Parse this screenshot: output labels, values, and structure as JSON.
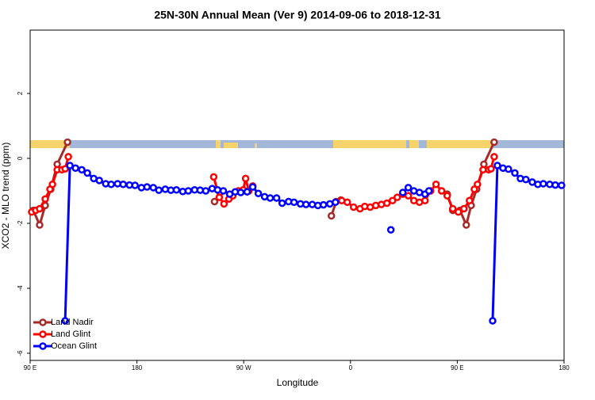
{
  "chart_data": {
    "type": "line",
    "title": "25N-30N Annual Mean (Ver 9)   2014-09-06 to 2018-12-31",
    "xlabel": "Longitude",
    "ylabel": "XCO2 - MLO trend (ppm)",
    "xlim": [
      90,
      540
    ],
    "ylim": [
      -6.22,
      3.95
    ],
    "xticks": [
      {
        "value": 90,
        "label": "90 E"
      },
      {
        "value": 180,
        "label": "180"
      },
      {
        "value": 270,
        "label": "90 W"
      },
      {
        "value": 360,
        "label": "0"
      },
      {
        "value": 450,
        "label": "90 E"
      },
      {
        "value": 540,
        "label": "180"
      }
    ],
    "yticks": [
      2,
      0,
      -2,
      -4,
      -6
    ],
    "legend": "bottom-left",
    "series": [
      {
        "name": "Land Nadir",
        "color": "#a52a2a",
        "x": [
          92.7,
          98,
          102.7,
          107.4,
          112.8,
          121.5,
          null,
          245.4,
          250,
          null,
          343.9,
          347.9,
          351.9,
          null,
          441.5,
          446.2,
          452.3,
          457.6,
          461.7,
          466.3,
          472.4,
          481.1
        ],
        "values": [
          -1.6,
          -2.05,
          -1.45,
          -0.95,
          -0.18,
          0.5,
          null,
          -1.33,
          -1.05,
          null,
          -1.77,
          -1.33,
          -1.28,
          null,
          -1.1,
          -1.6,
          -1.6,
          -2.05,
          -1.45,
          -0.95,
          -0.18,
          0.5
        ]
      },
      {
        "name": "Land Glint",
        "color": "#ff0000",
        "x": [
          91.3,
          94.7,
          98,
          102.7,
          106.7,
          108.8,
          112.8,
          116.8,
          119.5,
          122.2,
          null,
          244.7,
          249.4,
          253.4,
          257.5,
          260.8,
          265.5,
          269.6,
          271.6,
          274.3,
          277.6,
          null,
          352.6,
          357.3,
          362.6,
          368,
          372,
          376.6,
          381.3,
          386,
          390.7,
          395.4,
          399.4,
          404.1,
          408.7,
          413.4,
          418.1,
          422.8,
          427.5,
          432.1,
          436.8,
          441.5,
          446.2,
          450.9,
          455.6,
          460.3,
          464.4,
          467,
          471.7,
          476.4,
          478.4,
          481.1
        ],
        "values": [
          -1.65,
          -1.6,
          -1.55,
          -1.25,
          -0.95,
          -0.8,
          -0.35,
          -0.35,
          -0.32,
          0.05,
          null,
          -0.57,
          -1.2,
          -1.4,
          -1.25,
          -1.15,
          -1.0,
          -0.97,
          -0.62,
          -1.0,
          -0.85,
          null,
          -1.3,
          -1.35,
          -1.5,
          -1.55,
          -1.48,
          -1.5,
          -1.45,
          -1.42,
          -1.38,
          -1.3,
          -1.2,
          -1.1,
          -1.15,
          -1.3,
          -1.35,
          -1.3,
          -1.0,
          -0.8,
          -1.0,
          -1.15,
          -1.55,
          -1.65,
          -1.55,
          -1.3,
          -0.95,
          -0.8,
          -0.35,
          -0.35,
          -0.32,
          0.05
        ]
      },
      {
        "name": "Ocean Glint",
        "color": "#0000ff",
        "x": [
          119.5,
          123.5,
          128.2,
          133.5,
          138.2,
          143.6,
          148.3,
          153.7,
          158.3,
          163.7,
          168.4,
          173.7,
          178.4,
          183.8,
          188.5,
          193.8,
          198.5,
          203.9,
          208.6,
          213.3,
          218.6,
          223.3,
          228.6,
          233.3,
          238,
          243.4,
          248,
          252.8,
          258.2,
          262.8,
          267.5,
          272.9,
          277.6,
          282.3,
          287.6,
          292.3,
          297.7,
          302.4,
          307.8,
          312.4,
          317.8,
          322.5,
          327.8,
          332.5,
          337.2,
          342.6,
          347.3,
          null,
          394,
          null,
          404.1,
          408.7,
          413.4,
          418.1,
          422.8,
          426.1,
          null,
          479.8,
          483.8,
          488.5,
          493.1,
          498.5,
          503.2,
          507.8,
          513.2,
          517.9,
          522.5,
          527.9,
          532.6,
          537.9
        ],
        "values": [
          -5.0,
          -0.22,
          -0.3,
          -0.35,
          -0.45,
          -0.62,
          -0.68,
          -0.78,
          -0.8,
          -0.78,
          -0.8,
          -0.82,
          -0.83,
          -0.9,
          -0.88,
          -0.9,
          -0.98,
          -0.95,
          -0.98,
          -0.97,
          -1.02,
          -1.0,
          -0.97,
          -0.98,
          -1.0,
          -0.93,
          -0.97,
          -1.0,
          -1.1,
          -1.03,
          -1.05,
          -1.03,
          -0.88,
          -1.08,
          -1.18,
          -1.22,
          -1.22,
          -1.38,
          -1.33,
          -1.35,
          -1.4,
          -1.42,
          -1.42,
          -1.45,
          -1.43,
          -1.4,
          -1.35,
          null,
          -2.2,
          null,
          -1.05,
          -0.9,
          -1.0,
          -1.05,
          -1.1,
          -1.0,
          null,
          -5.0,
          -0.22,
          -0.3,
          -0.33,
          -0.45,
          -0.62,
          -0.65,
          -0.73,
          -0.8,
          -0.78,
          -0.8,
          -0.82,
          -0.83
        ]
      }
    ]
  }
}
